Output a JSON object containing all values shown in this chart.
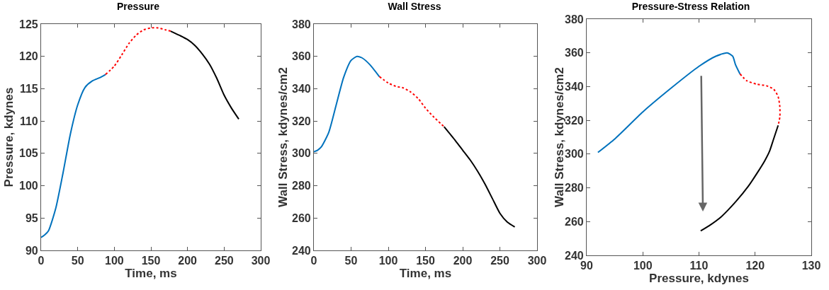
{
  "chart_data": [
    {
      "type": "line",
      "title": "Pressure",
      "xlabel": "Time, ms",
      "ylabel": "Pressure, kdynes",
      "xlim": [
        0,
        300
      ],
      "xticks": [
        0,
        50,
        100,
        150,
        200,
        250,
        300
      ],
      "ylim": [
        90,
        125
      ],
      "yticks": [
        90,
        95,
        100,
        105,
        110,
        115,
        120,
        125
      ],
      "series": [
        {
          "color": "#0072bd",
          "line_style": "solid",
          "x": [
            0,
            5,
            10,
            20,
            30,
            40,
            50,
            60,
            70,
            80,
            88
          ],
          "values": [
            92,
            92.4,
            93,
            96.5,
            102,
            108,
            112.5,
            115.2,
            116.2,
            116.7,
            117.2
          ]
        },
        {
          "color": "#ff0000",
          "line_style": "dotted",
          "x": [
            88,
            100,
            110,
            120,
            130,
            140,
            150,
            160,
            170,
            177
          ],
          "values": [
            117.2,
            118.5,
            120.2,
            122,
            123.3,
            124.1,
            124.4,
            124.4,
            124.1,
            123.9
          ]
        },
        {
          "color": "#000000",
          "line_style": "solid",
          "x": [
            177,
            190,
            200,
            210,
            220,
            230,
            240,
            250,
            260,
            270
          ],
          "values": [
            123.9,
            123.2,
            122.6,
            121.7,
            120.4,
            118.8,
            116.6,
            114,
            112,
            110.3
          ]
        }
      ]
    },
    {
      "type": "line",
      "title": "Wall Stress",
      "xlabel": "Time, ms",
      "ylabel": "Wall Stress, kdynes/cm2",
      "xlim": [
        0,
        300
      ],
      "xticks": [
        0,
        50,
        100,
        150,
        200,
        250,
        300
      ],
      "ylim": [
        240,
        380
      ],
      "yticks": [
        240,
        260,
        280,
        300,
        320,
        340,
        360,
        380
      ],
      "series": [
        {
          "color": "#0072bd",
          "line_style": "solid",
          "x": [
            0,
            5,
            10,
            20,
            30,
            40,
            50,
            58,
            65,
            75,
            88
          ],
          "values": [
            301,
            302,
            304,
            313,
            330,
            347,
            357.5,
            360,
            359,
            355,
            347.5
          ]
        },
        {
          "color": "#ff0000",
          "line_style": "dotted",
          "x": [
            88,
            100,
            110,
            120,
            130,
            140,
            150,
            160,
            175
          ],
          "values": [
            347.5,
            343.5,
            341.5,
            340.5,
            338,
            334,
            328,
            323,
            316.5
          ]
        },
        {
          "color": "#000000",
          "line_style": "solid",
          "x": [
            175,
            190,
            200,
            210,
            220,
            230,
            240,
            250,
            260,
            270
          ],
          "values": [
            316.5,
            308,
            302,
            296,
            289,
            281,
            272,
            263,
            257.5,
            254.5
          ]
        }
      ]
    },
    {
      "type": "line",
      "title": "Pressure-Stress Relation",
      "xlabel": "Pressure, kdynes",
      "ylabel": "Wall Stress, kdynes/cm2",
      "xlim": [
        90,
        130
      ],
      "xticks": [
        90,
        100,
        110,
        120,
        130
      ],
      "ylim": [
        240,
        380
      ],
      "yticks": [
        240,
        260,
        280,
        300,
        320,
        340,
        360,
        380
      ],
      "series": [
        {
          "color": "#0072bd",
          "line_style": "solid",
          "x": [
            92,
            95,
            100,
            105,
            110,
            113,
            115,
            116,
            116.5,
            117.3
          ],
          "values": [
            301,
            309,
            325,
            339,
            352,
            358,
            360,
            358,
            353,
            347.5
          ]
        },
        {
          "color": "#ff0000",
          "line_style": "dotted",
          "x": [
            117.3,
            118.5,
            120.2,
            122,
            123.3,
            124.1,
            124.4,
            124.4,
            124.1
          ],
          "values": [
            347.5,
            343.5,
            341.5,
            340.5,
            338.5,
            334,
            328,
            322,
            317
          ]
        },
        {
          "color": "#000000",
          "line_style": "solid",
          "x": [
            124.1,
            123.2,
            122.6,
            121.7,
            120.4,
            118.8,
            116.6,
            114,
            112,
            110.3
          ],
          "values": [
            317,
            308,
            302,
            296,
            289,
            281,
            272,
            263,
            258,
            254.5
          ]
        }
      ]
    }
  ]
}
